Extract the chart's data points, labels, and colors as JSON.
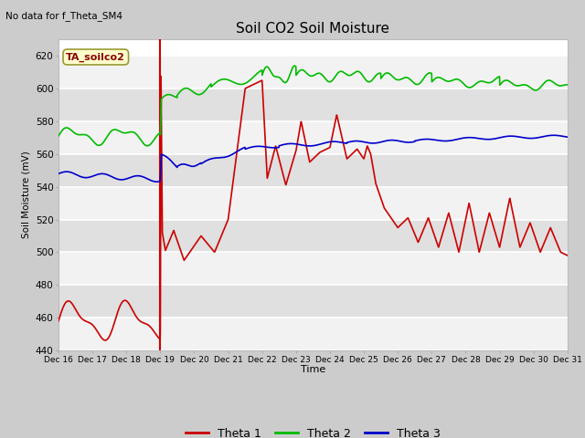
{
  "title": "Soil CO2 Soil Moisture",
  "ylabel": "Soil Moisture (mV)",
  "xlabel": "Time",
  "top_left_text": "No data for f_Theta_SM4",
  "legend_label": "TA_soilco2",
  "ylim": [
    440,
    630
  ],
  "yticks": [
    440,
    460,
    480,
    500,
    520,
    540,
    560,
    580,
    600,
    620
  ],
  "xtick_labels": [
    "Dec 16",
    "Dec 17",
    "Dec 18",
    "Dec 19",
    "Dec 20",
    "Dec 21",
    "Dec 22",
    "Dec 23",
    "Dec 24",
    "Dec 25",
    "Dec 26",
    "Dec 27",
    "Dec 28",
    "Dec 29",
    "Dec 30",
    "Dec 31"
  ],
  "line_colors": {
    "theta1": "#cc0000",
    "theta2": "#00bb00",
    "theta3": "#0000cc"
  },
  "vline_color": "#cc0000",
  "legend_entries": [
    "Theta 1",
    "Theta 2",
    "Theta 3"
  ]
}
